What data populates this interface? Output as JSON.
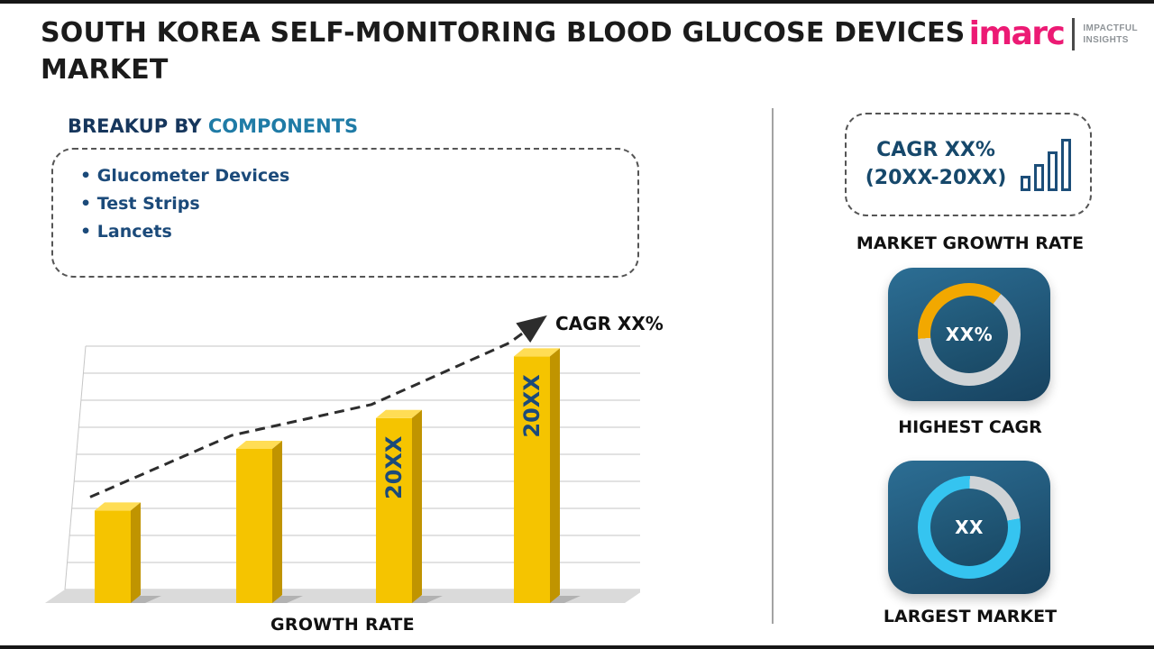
{
  "header": {
    "title": "SOUTH KOREA SELF-MONITORING BLOOD GLUCOSE DEVICES MARKET",
    "logo": {
      "brand": "imarc",
      "tagline_line1": "IMPACTFUL",
      "tagline_line2": "INSIGHTS"
    }
  },
  "breakup": {
    "heading_prefix": "BREAKUP BY",
    "heading_highlight": "COMPONENTS",
    "items": [
      "Glucometer Devices",
      "Test Strips",
      "Lancets"
    ]
  },
  "chart_data": {
    "type": "bar",
    "categories": [
      "",
      "",
      "20XX",
      "20XX"
    ],
    "values": [
      36,
      60,
      72,
      96
    ],
    "bar_labels": [
      "",
      "",
      "20XX",
      "20XX"
    ],
    "ylim": [
      0,
      100
    ],
    "grid": true,
    "title": "",
    "xlabel": "GROWTH RATE",
    "ylabel": "",
    "trend_label": "CAGR XX%",
    "bar_color": "#F5C400",
    "bar_top_color": "#FFDD55",
    "bar_side_color": "#C09400",
    "legend": "none"
  },
  "right_panel": {
    "growth_rate_card": {
      "line1": "CAGR XX%",
      "line2": "(20XX-20XX)",
      "icon": "bar-chart-icon"
    },
    "growth_rate_caption": "MARKET GROWTH RATE",
    "highest_cagr_tile": {
      "value": "XX%",
      "caption": "HIGHEST CAGR",
      "arc_percent": 37,
      "arc_start_deg": 265,
      "arc_color": "#F2A800",
      "track_color": "#CFD3D6"
    },
    "largest_market_tile": {
      "value": "XX",
      "caption": "LARGEST MARKET",
      "arc_percent": 78,
      "arc_start_deg": 80,
      "arc_color": "#35C4F0",
      "track_color": "#CFD3D6"
    }
  },
  "colors": {
    "navy": "#1B4A7A",
    "heading_dark": "#16365C",
    "heading_blue": "#1F7BA6",
    "logo_pink": "#EC1A74",
    "tile_navy": "#1D5272",
    "bar_yellow": "#F5C400"
  }
}
